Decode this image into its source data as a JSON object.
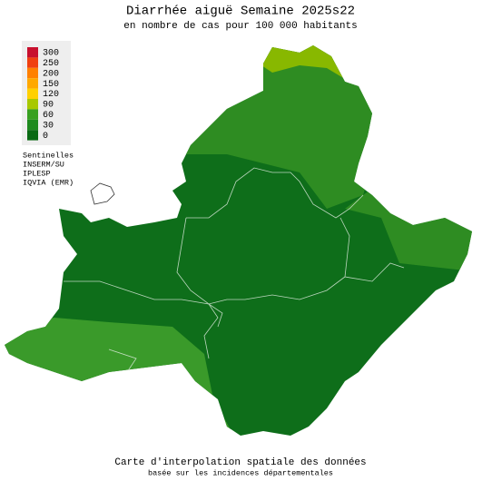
{
  "header": {
    "title": "Diarrhée aiguë Semaine 2025s22",
    "subtitle": "en nombre de cas pour 100 000 habitants"
  },
  "legend": {
    "levels": [
      {
        "value": 300,
        "color": "#c8102e"
      },
      {
        "value": 250,
        "color": "#f04010"
      },
      {
        "value": 200,
        "color": "#ff8000"
      },
      {
        "value": 150,
        "color": "#ffa800"
      },
      {
        "value": 120,
        "color": "#ffd000"
      },
      {
        "value": 90,
        "color": "#a8c800"
      },
      {
        "value": 60,
        "color": "#38a020"
      },
      {
        "value": 30,
        "color": "#1e8a1e"
      },
      {
        "value": 0,
        "color": "#0a6a14"
      }
    ]
  },
  "sources": [
    "Sentinelles",
    "INSERM/SU",
    "IPLESP",
    "IQVIA (EMR)"
  ],
  "footer": {
    "line1": "Carte d'interpolation spatiale des données",
    "line2": "basée sur les incidences départementales"
  }
}
